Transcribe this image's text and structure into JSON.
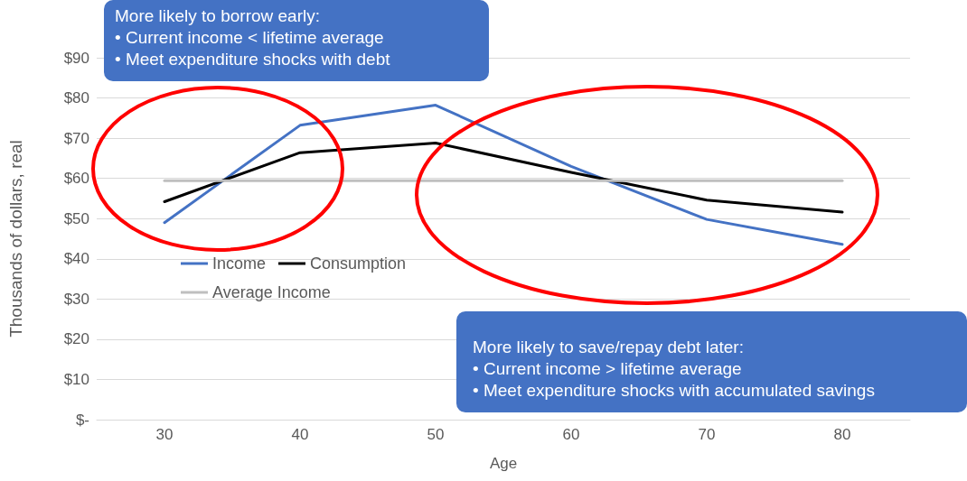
{
  "chart_data": {
    "type": "line",
    "xlabel": "Age",
    "ylabel": "Thousands of dollars, real",
    "categories": [
      "30",
      "40",
      "50",
      "60",
      "70",
      "80"
    ],
    "series": [
      {
        "name": "Income",
        "color": "#4472c4",
        "values": [
          49,
          73.2,
          78.2,
          63,
          49.8,
          43.6
        ]
      },
      {
        "name": "Consumption",
        "color": "#000000",
        "values": [
          54.2,
          66.4,
          68.8,
          61.5,
          54.6,
          51.6
        ]
      },
      {
        "name": "Average Income",
        "color": "#bfbfbf",
        "values": [
          59.4,
          59.4,
          59.4,
          59.4,
          59.4,
          59.4
        ]
      }
    ],
    "ylim": [
      0,
      90
    ],
    "yticks": [
      {
        "value": 0,
        "label": "$-"
      },
      {
        "value": 10,
        "label": "$10"
      },
      {
        "value": 20,
        "label": "$20"
      },
      {
        "value": 30,
        "label": "$30"
      },
      {
        "value": 40,
        "label": "$40"
      },
      {
        "value": 50,
        "label": "$50"
      },
      {
        "value": 60,
        "label": "$60"
      },
      {
        "value": 70,
        "label": "$70"
      },
      {
        "value": 80,
        "label": "$80"
      },
      {
        "value": 90,
        "label": "$90"
      }
    ],
    "grid": "y",
    "legend": "left",
    "marker": "none",
    "line_style": "solid",
    "annotations": [
      "More likely to borrow early:\n• Current income < lifetime average\n• Meet expenditure shocks with debt",
      "More likely to save/repay debt later:\n• Current income > lifetime average\n• Meet expenditure shocks with accumulated savings"
    ]
  }
}
